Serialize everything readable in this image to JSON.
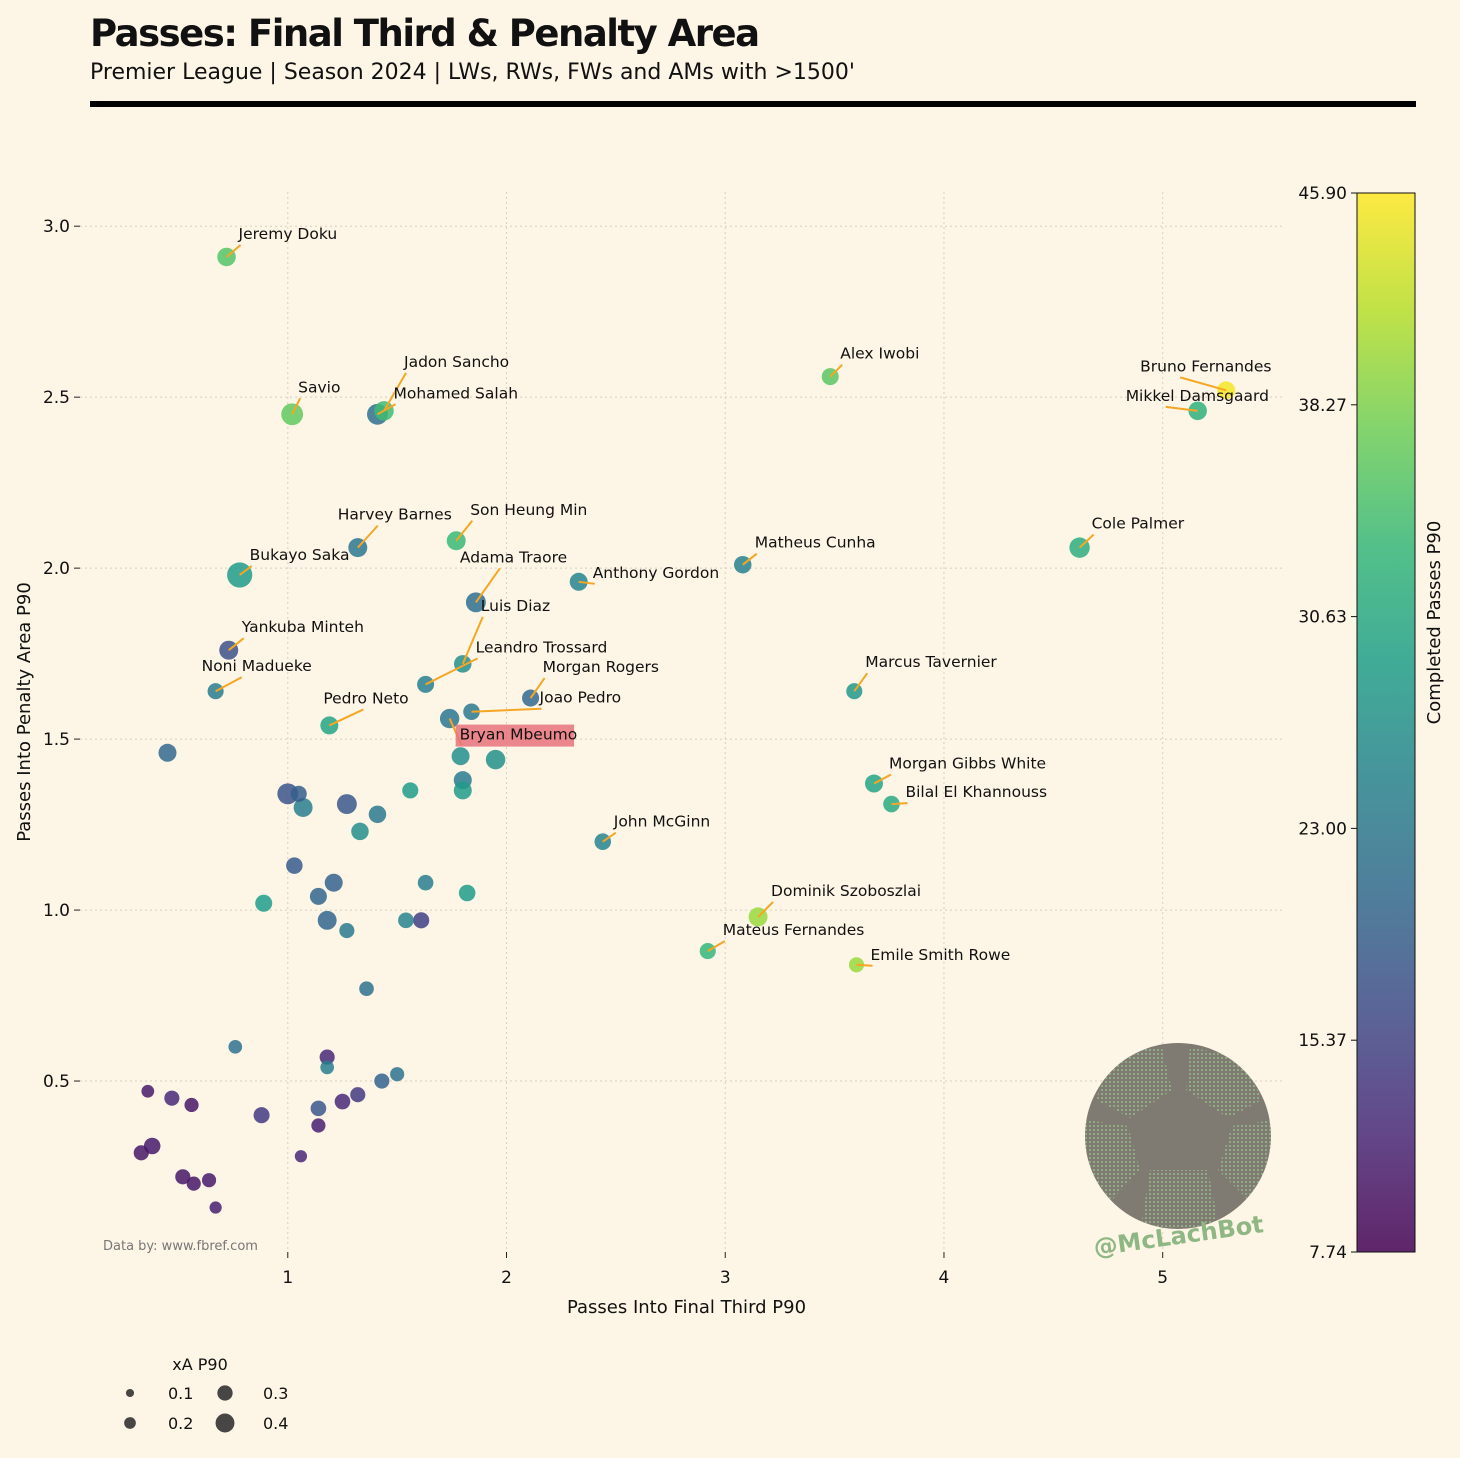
{
  "header": {
    "title": "Passes: Final Third & Penalty Area",
    "subtitle": "Premier League | Season 2024 | LWs, RWs, FWs and AMs with >1500'"
  },
  "source_note": "Data by: www.fbref.com",
  "watermark": "@McLachBot",
  "colors": {
    "background": "#fdf5e6",
    "connector": "#f5a623",
    "highlight": "#e8727b",
    "rule": "#000000",
    "colormap": "viridis"
  },
  "chart_data": {
    "type": "scatter",
    "xlabel": "Passes Into Final Third P90",
    "ylabel": "Passes Into Penalty Area P90",
    "xlim": [
      0.05,
      5.55
    ],
    "ylim": [
      0.0,
      3.1
    ],
    "xticks": [
      1,
      2,
      3,
      4,
      5
    ],
    "yticks": [
      0.5,
      1.0,
      1.5,
      2.0,
      2.5,
      3.0
    ],
    "xtick_labels": [
      "1",
      "2",
      "3",
      "4",
      "5"
    ],
    "ytick_labels": [
      "0.5",
      "1.0",
      "1.5",
      "2.0",
      "2.5",
      "3.0"
    ],
    "grid": true,
    "colorbar": {
      "label": "Completed Passes P90",
      "min": 7.74,
      "max": 45.9,
      "ticks": [
        "7.74",
        "15.37",
        "23.00",
        "30.63",
        "38.27",
        "45.90"
      ]
    },
    "size_legend": {
      "title": "xA P90",
      "entries": [
        {
          "label": "0.1",
          "value": 0.1
        },
        {
          "label": "0.2",
          "value": 0.2
        },
        {
          "label": "0.3",
          "value": 0.3
        },
        {
          "label": "0.4",
          "value": 0.4
        }
      ]
    },
    "points": [
      {
        "name": "Jeremy Doku",
        "x": 0.72,
        "y": 2.91,
        "c": 35.5,
        "s": 0.26
      },
      {
        "name": "Savio",
        "x": 1.02,
        "y": 2.45,
        "c": 36.5,
        "s": 0.33
      },
      {
        "name": "Jadon Sancho",
        "x": 1.44,
        "y": 2.46,
        "c": 34.0,
        "s": 0.28
      },
      {
        "name": "Mohamed Salah",
        "x": 1.41,
        "y": 2.45,
        "c": 22.0,
        "s": 0.31
      },
      {
        "name": "Alex Iwobi",
        "x": 3.48,
        "y": 2.56,
        "c": 36.0,
        "s": 0.23
      },
      {
        "name": "Bruno Fernandes",
        "x": 5.29,
        "y": 2.52,
        "c": 45.5,
        "s": 0.25
      },
      {
        "name": "Mikkel Damsgaard",
        "x": 5.16,
        "y": 2.46,
        "c": 32.0,
        "s": 0.26
      },
      {
        "name": "Harvey Barnes",
        "x": 1.32,
        "y": 2.06,
        "c": 22.5,
        "s": 0.27
      },
      {
        "name": "Son Heung Min",
        "x": 1.77,
        "y": 2.08,
        "c": 33.5,
        "s": 0.27
      },
      {
        "name": "Cole Palmer",
        "x": 4.62,
        "y": 2.06,
        "c": 31.5,
        "s": 0.3
      },
      {
        "name": "Bukayo Saka",
        "x": 0.78,
        "y": 1.98,
        "c": 28.5,
        "s": 0.4
      },
      {
        "name": "Matheus Cunha",
        "x": 3.08,
        "y": 2.01,
        "c": 24.5,
        "s": 0.24
      },
      {
        "name": "Adama Traore",
        "x": 1.86,
        "y": 1.9,
        "c": 21.5,
        "s": 0.29
      },
      {
        "name": "Anthony Gordon",
        "x": 2.33,
        "y": 1.96,
        "c": 25.0,
        "s": 0.25
      },
      {
        "name": "Yankuba Minteh",
        "x": 0.73,
        "y": 1.76,
        "c": 17.0,
        "s": 0.27
      },
      {
        "name": "Luis Diaz",
        "x": 1.8,
        "y": 1.72,
        "c": 26.5,
        "s": 0.24
      },
      {
        "name": "Noni Madueke",
        "x": 0.67,
        "y": 1.64,
        "c": 23.5,
        "s": 0.21
      },
      {
        "name": "Leandro Trossard",
        "x": 1.63,
        "y": 1.66,
        "c": 24.0,
        "s": 0.23
      },
      {
        "name": "Morgan Rogers",
        "x": 2.11,
        "y": 1.62,
        "c": 20.5,
        "s": 0.23
      },
      {
        "name": "Marcus Tavernier",
        "x": 3.59,
        "y": 1.64,
        "c": 28.0,
        "s": 0.21
      },
      {
        "name": "Joao Pedro",
        "x": 1.84,
        "y": 1.58,
        "c": 23.0,
        "s": 0.22
      },
      {
        "name": "Pedro Neto",
        "x": 1.19,
        "y": 1.54,
        "c": 30.0,
        "s": 0.25
      },
      {
        "name": "Bryan Mbeumo",
        "x": 1.74,
        "y": 1.56,
        "c": 22.5,
        "s": 0.28,
        "highlight": true
      },
      {
        "name": "Morgan Gibbs White",
        "x": 3.68,
        "y": 1.37,
        "c": 30.0,
        "s": 0.25
      },
      {
        "name": "Bilal El Khannouss",
        "x": 3.76,
        "y": 1.31,
        "c": 31.0,
        "s": 0.22
      },
      {
        "name": "John McGinn",
        "x": 2.44,
        "y": 1.2,
        "c": 25.0,
        "s": 0.22
      },
      {
        "name": "Dominik Szoboszlai",
        "x": 3.15,
        "y": 0.98,
        "c": 40.0,
        "s": 0.27
      },
      {
        "name": "Mateus Fernandes",
        "x": 2.92,
        "y": 0.88,
        "c": 33.0,
        "s": 0.21
      },
      {
        "name": "Emile Smith Rowe",
        "x": 3.6,
        "y": 0.84,
        "c": 40.0,
        "s": 0.19
      },
      {
        "x": 0.45,
        "y": 1.46,
        "c": 20.5,
        "s": 0.25
      },
      {
        "x": 1.79,
        "y": 1.45,
        "c": 26.5,
        "s": 0.25
      },
      {
        "x": 1.95,
        "y": 1.44,
        "c": 27.0,
        "s": 0.28
      },
      {
        "x": 1.8,
        "y": 1.38,
        "c": 23.5,
        "s": 0.25
      },
      {
        "x": 1.8,
        "y": 1.35,
        "c": 28.5,
        "s": 0.25
      },
      {
        "x": 1.56,
        "y": 1.35,
        "c": 28.5,
        "s": 0.21
      },
      {
        "x": 1.0,
        "y": 1.34,
        "c": 17.5,
        "s": 0.31
      },
      {
        "x": 1.05,
        "y": 1.34,
        "c": 19.0,
        "s": 0.21
      },
      {
        "x": 1.07,
        "y": 1.3,
        "c": 24.0,
        "s": 0.27
      },
      {
        "x": 1.27,
        "y": 1.31,
        "c": 18.0,
        "s": 0.29
      },
      {
        "x": 1.41,
        "y": 1.28,
        "c": 23.0,
        "s": 0.24
      },
      {
        "x": 1.33,
        "y": 1.23,
        "c": 26.5,
        "s": 0.24
      },
      {
        "x": 1.03,
        "y": 1.13,
        "c": 18.5,
        "s": 0.22
      },
      {
        "x": 1.21,
        "y": 1.08,
        "c": 19.5,
        "s": 0.25
      },
      {
        "x": 1.14,
        "y": 1.04,
        "c": 20.0,
        "s": 0.23
      },
      {
        "x": 1.63,
        "y": 1.08,
        "c": 24.0,
        "s": 0.2
      },
      {
        "x": 1.82,
        "y": 1.05,
        "c": 28.5,
        "s": 0.22
      },
      {
        "x": 0.89,
        "y": 1.02,
        "c": 29.0,
        "s": 0.23
      },
      {
        "x": 1.18,
        "y": 0.97,
        "c": 20.0,
        "s": 0.27
      },
      {
        "x": 1.27,
        "y": 0.94,
        "c": 23.0,
        "s": 0.19
      },
      {
        "x": 1.54,
        "y": 0.97,
        "c": 25.0,
        "s": 0.2
      },
      {
        "x": 1.61,
        "y": 0.97,
        "c": 15.0,
        "s": 0.21
      },
      {
        "x": 1.36,
        "y": 0.77,
        "c": 22.0,
        "s": 0.18
      },
      {
        "x": 0.76,
        "y": 0.6,
        "c": 22.0,
        "s": 0.16
      },
      {
        "x": 1.18,
        "y": 0.57,
        "c": 12.0,
        "s": 0.19
      },
      {
        "x": 1.18,
        "y": 0.54,
        "c": 24.0,
        "s": 0.16
      },
      {
        "x": 1.5,
        "y": 0.52,
        "c": 22.0,
        "s": 0.17
      },
      {
        "x": 1.43,
        "y": 0.5,
        "c": 19.5,
        "s": 0.19
      },
      {
        "x": 0.36,
        "y": 0.47,
        "c": 10.5,
        "s": 0.14
      },
      {
        "x": 0.47,
        "y": 0.45,
        "c": 12.0,
        "s": 0.19
      },
      {
        "x": 0.56,
        "y": 0.43,
        "c": 10.0,
        "s": 0.17
      },
      {
        "x": 0.88,
        "y": 0.4,
        "c": 14.0,
        "s": 0.21
      },
      {
        "x": 1.14,
        "y": 0.42,
        "c": 18.0,
        "s": 0.2
      },
      {
        "x": 1.32,
        "y": 0.46,
        "c": 14.0,
        "s": 0.19
      },
      {
        "x": 1.25,
        "y": 0.44,
        "c": 12.0,
        "s": 0.2
      },
      {
        "x": 1.14,
        "y": 0.37,
        "c": 11.0,
        "s": 0.17
      },
      {
        "x": 0.38,
        "y": 0.31,
        "c": 10.5,
        "s": 0.22
      },
      {
        "x": 0.33,
        "y": 0.29,
        "c": 10.0,
        "s": 0.19
      },
      {
        "x": 0.52,
        "y": 0.22,
        "c": 10.0,
        "s": 0.19
      },
      {
        "x": 0.57,
        "y": 0.2,
        "c": 10.0,
        "s": 0.17
      },
      {
        "x": 0.64,
        "y": 0.21,
        "c": 10.5,
        "s": 0.17
      },
      {
        "x": 1.06,
        "y": 0.28,
        "c": 12.0,
        "s": 0.13
      },
      {
        "x": 0.67,
        "y": 0.13,
        "c": 11.0,
        "s": 0.13
      }
    ]
  }
}
